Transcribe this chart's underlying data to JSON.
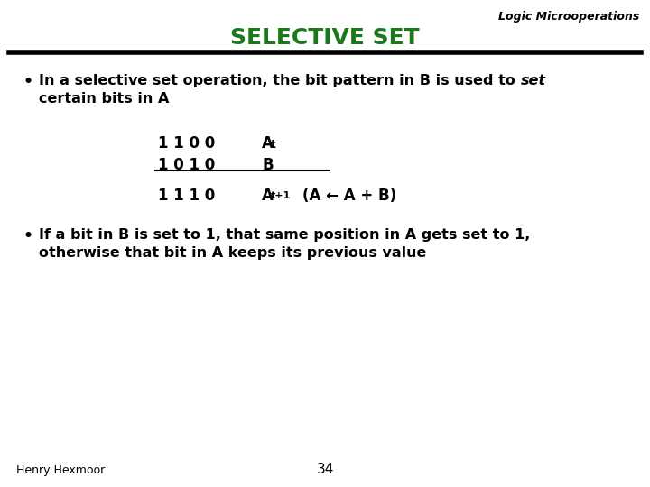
{
  "title": "SELECTIVE SET",
  "title_color": "#1a7a1a",
  "header_label": "Logic Microoperations",
  "bg_color": "#ffffff",
  "bullet1_part1": "In a selective set operation, the bit pattern in B is used to ",
  "bullet1_italic": "set",
  "bullet1_line2": "certain bits in A",
  "row1_bits": "1 1 0 0",
  "row1_label": "A",
  "row1_sub": "t",
  "row2_bits": "1 0 1 0",
  "row2_label": "B",
  "row3_bits": "1 1 1 0",
  "row3_label": "A",
  "row3_sub": "t+1",
  "row3_expr": "(A ← A + B)",
  "bullet2_line1": "If a bit in B is set to 1, that same position in A gets set to 1,",
  "bullet2_line2": "otherwise that bit in A keeps its previous value",
  "footer_left": "Henry Hexmoor",
  "footer_center": "34",
  "line_color": "#000000",
  "title_fontsize": 18,
  "header_fontsize": 9,
  "bullet_fontsize": 11.5,
  "mono_fontsize": 12,
  "footer_fontsize": 9
}
